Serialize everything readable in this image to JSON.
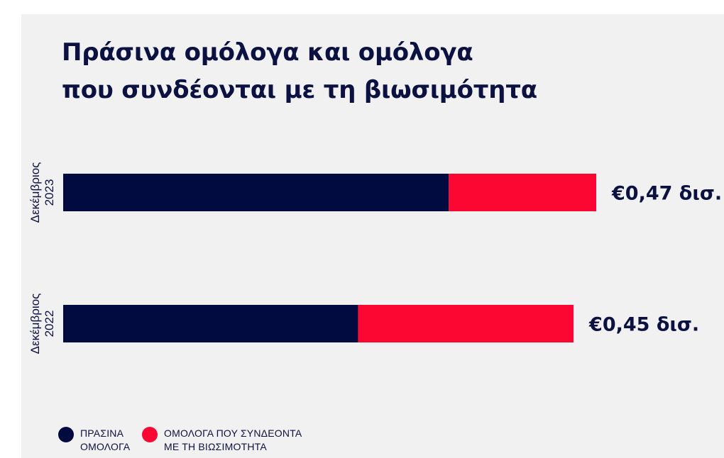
{
  "colors": {
    "background": "#f1f1f2",
    "green": "#020b3f",
    "sustainability": "#fc0632",
    "text": "#0b1140"
  },
  "title": {
    "line1": "Πράσινα ομόλογα και ομόλογα",
    "line2": "που συνδέονται με τη βιωσιμότητα"
  },
  "chart_data": {
    "type": "bar",
    "orientation": "horizontal",
    "stacked": true,
    "title": "Πράσινα ομόλογα και ομόλογα που συνδέονται με τη βιωσιμότητα",
    "categories": [
      "Δεκέμβριος 2023",
      "Δεκέμβριος 2022"
    ],
    "category_lines": [
      [
        "Δεκέμβριος",
        "2023"
      ],
      [
        "Δεκέμβριος",
        "2022"
      ]
    ],
    "series": [
      {
        "name": "ΠΡΑΣΙΝΑ ΟΜΟΛΟΓΑ",
        "color": "#020b3f",
        "values": [
          0.34,
          0.26
        ]
      },
      {
        "name": "ΟΜΟΛΟΓΑ ΠΟΥ ΣΥΝΔΕΟΝΤΑ ΜΕ ΤΗ ΒΙΩΣΙΜΟΤΗΤΑ",
        "color": "#fc0632",
        "values": [
          0.13,
          0.19
        ]
      }
    ],
    "totals": [
      0.47,
      0.45
    ],
    "total_labels": [
      "€0,47 δισ.",
      "€0,45 δισ."
    ],
    "xlim": [
      0,
      0.47
    ],
    "axes_visible": false,
    "grid": false,
    "legend_position": "bottom-left"
  },
  "legend": [
    {
      "label": "ΠΡΑΣΙΝΑ\nΟΜΟΛΟΓΑ",
      "color": "#020b3f"
    },
    {
      "label": "ΟΜΟΛΟΓΑ ΠΟΥ ΣΥΝΔΕΟΝΤΑ\nΜΕ ΤΗ ΒΙΩΣΙΜΟΤΗΤΑ",
      "color": "#fc0632"
    }
  ]
}
